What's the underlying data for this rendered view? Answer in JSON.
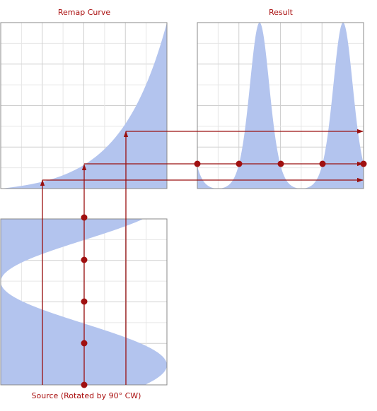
{
  "labels": {
    "remap_curve": "Remap Curve",
    "result": "Result",
    "source": "Source (Rotated by 90° CW)"
  },
  "colors": {
    "fill": "#b3c4ee",
    "grid": "#d6d6d6",
    "frame": "#888888",
    "accent": "#9a1010",
    "text": "#aa1010"
  }
}
